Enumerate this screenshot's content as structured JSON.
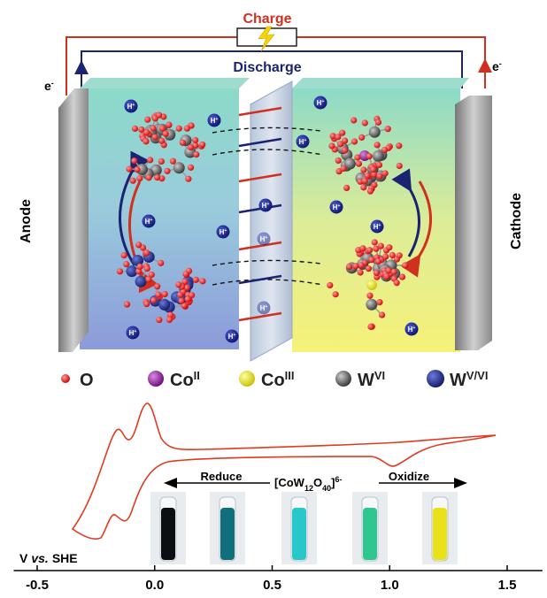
{
  "circuit": {
    "charge": "Charge",
    "discharge": "Discharge"
  },
  "electron": {
    "symbol": "e",
    "charge": "-"
  },
  "proton": {
    "symbol": "H",
    "charge": "+"
  },
  "electrodes": {
    "anode": "Anode",
    "cathode": "Cathode"
  },
  "legend": [
    {
      "symbol": "O"
    },
    {
      "symbol": "Co",
      "charge": "II"
    },
    {
      "symbol": "Co",
      "charge": "III"
    },
    {
      "symbol": "W",
      "charge": "VI"
    },
    {
      "symbol": "W",
      "charge": "V/VI"
    }
  ],
  "redox": {
    "reduce": "Reduce",
    "oxidize": "Oxidize",
    "formula": [
      "[CoW",
      "12",
      "O",
      "40",
      "]",
      "6-"
    ]
  },
  "axis": {
    "label": [
      "V",
      "vs.",
      "SHE"
    ],
    "xlim": [
      -0.6,
      1.65
    ],
    "xticks": [
      -0.5,
      {
        "value": 0,
        "label": "0.0"
      },
      0.5,
      {
        "value": 1,
        "label": "1.0"
      },
      1.5
    ]
  }
}
